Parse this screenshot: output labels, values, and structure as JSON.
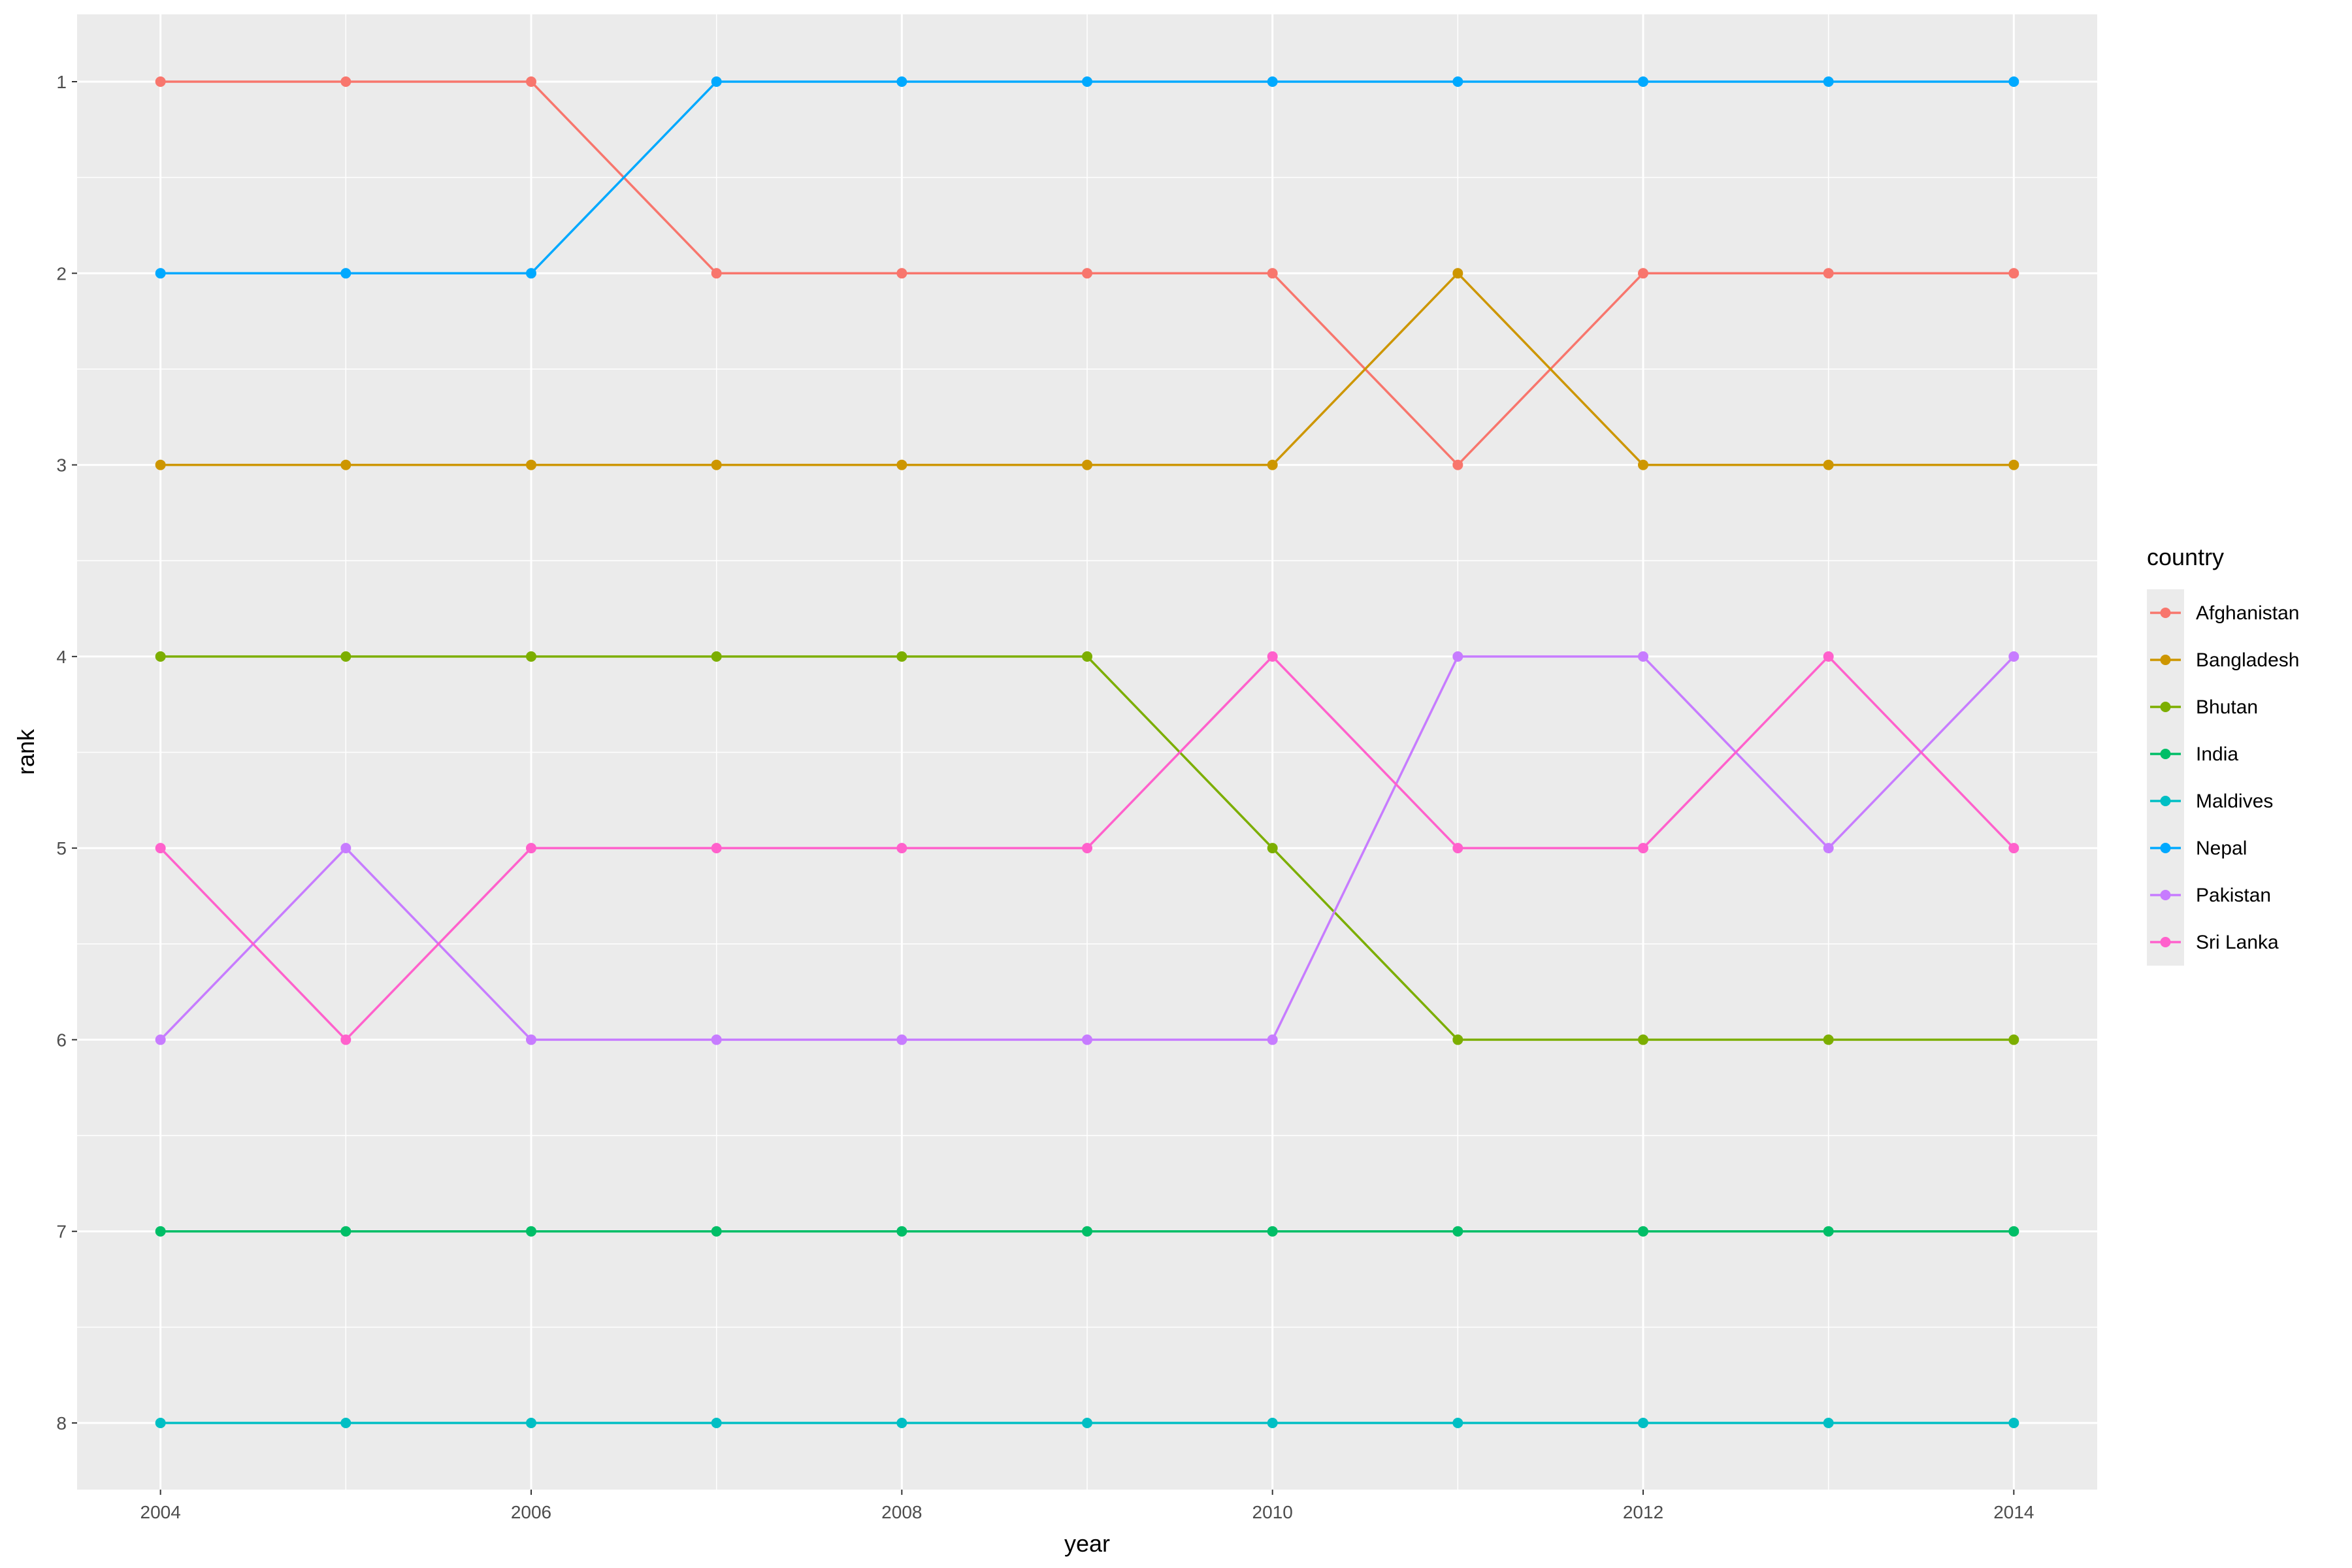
{
  "chart_data": {
    "type": "line",
    "title": "",
    "xlabel": "year",
    "ylabel": "rank",
    "x": [
      2004,
      2005,
      2006,
      2007,
      2008,
      2009,
      2010,
      2011,
      2012,
      2013,
      2014
    ],
    "x_ticks": [
      2004,
      2006,
      2008,
      2010,
      2012,
      2014
    ],
    "x_tick_labels": [
      "2004",
      "2006",
      "2008",
      "2010",
      "2012",
      "2014"
    ],
    "y_ticks": [
      1,
      2,
      3,
      4,
      5,
      6,
      7,
      8
    ],
    "y_tick_labels": [
      "1",
      "2",
      "3",
      "4",
      "5",
      "6",
      "7",
      "8"
    ],
    "xlim": [
      2003.55,
      2014.45
    ],
    "ylim": [
      1,
      8
    ],
    "y_reversed": true,
    "grid": true,
    "legend_title": "country",
    "legend_position": "right",
    "series": [
      {
        "name": "Afghanistan",
        "color": "#F8766D",
        "values": [
          1,
          1,
          1,
          2,
          2,
          2,
          2,
          3,
          2,
          2,
          2
        ]
      },
      {
        "name": "Bangladesh",
        "color": "#CD9600",
        "values": [
          3,
          3,
          3,
          3,
          3,
          3,
          3,
          2,
          3,
          3,
          3
        ]
      },
      {
        "name": "Bhutan",
        "color": "#7CAE00",
        "values": [
          4,
          4,
          4,
          4,
          4,
          4,
          5,
          6,
          6,
          6,
          6
        ]
      },
      {
        "name": "India",
        "color": "#00BE67",
        "values": [
          7,
          7,
          7,
          7,
          7,
          7,
          7,
          7,
          7,
          7,
          7
        ]
      },
      {
        "name": "Maldives",
        "color": "#00BFC4",
        "values": [
          8,
          8,
          8,
          8,
          8,
          8,
          8,
          8,
          8,
          8,
          8
        ]
      },
      {
        "name": "Nepal",
        "color": "#00A9FF",
        "values": [
          2,
          2,
          2,
          1,
          1,
          1,
          1,
          1,
          1,
          1,
          1
        ]
      },
      {
        "name": "Pakistan",
        "color": "#C77CFF",
        "values": [
          6,
          5,
          6,
          6,
          6,
          6,
          6,
          4,
          4,
          5,
          4
        ]
      },
      {
        "name": "Sri Lanka",
        "color": "#FF61CC",
        "values": [
          5,
          6,
          5,
          5,
          5,
          5,
          4,
          5,
          5,
          4,
          5
        ]
      }
    ]
  }
}
